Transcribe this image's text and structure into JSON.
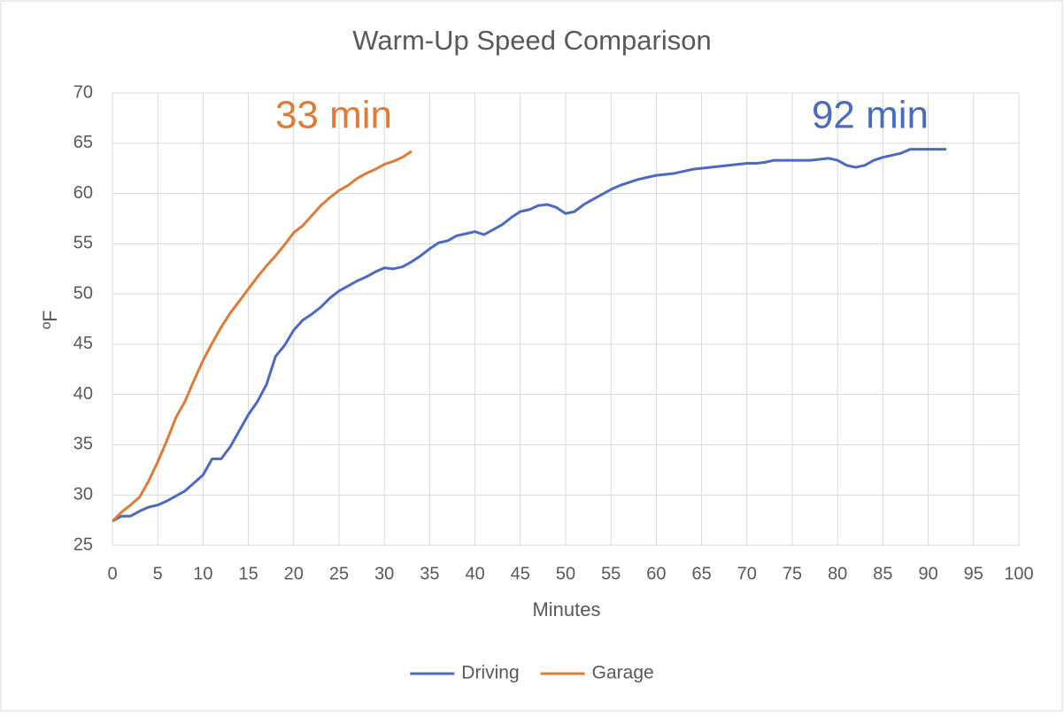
{
  "chart_data": {
    "type": "line",
    "title": "Warm-Up Speed Comparison",
    "x_label": "Minutes",
    "y_label": "ºF",
    "xlim": [
      0,
      100
    ],
    "xticks": [
      0,
      5,
      10,
      15,
      20,
      25,
      30,
      35,
      40,
      45,
      50,
      55,
      60,
      65,
      70,
      75,
      80,
      85,
      90,
      95,
      100
    ],
    "ylim": [
      25,
      70
    ],
    "yticks": [
      25,
      30,
      35,
      40,
      45,
      50,
      55,
      60,
      65,
      70
    ],
    "grid": true,
    "legend": "bottom",
    "annotations": [
      {
        "text": "33 min",
        "color": "#e07b35"
      },
      {
        "text": "92 min",
        "color": "#4a6bbf"
      }
    ],
    "series": [
      {
        "name": "Driving",
        "color": "#4a6bbf",
        "x": [
          0,
          1,
          2,
          3,
          4,
          5,
          6,
          7,
          8,
          9,
          10,
          11,
          12,
          13,
          14,
          15,
          16,
          17,
          18,
          19,
          20,
          21,
          22,
          23,
          24,
          25,
          26,
          27,
          28,
          29,
          30,
          31,
          32,
          33,
          34,
          35,
          36,
          37,
          38,
          39,
          40,
          41,
          42,
          43,
          44,
          45,
          46,
          47,
          48,
          49,
          50,
          51,
          52,
          53,
          54,
          55,
          56,
          57,
          58,
          59,
          60,
          61,
          62,
          63,
          64,
          65,
          66,
          67,
          68,
          69,
          70,
          71,
          72,
          73,
          74,
          75,
          76,
          77,
          78,
          79,
          80,
          81,
          82,
          83,
          84,
          85,
          86,
          87,
          88,
          89,
          90,
          91,
          92
        ],
        "values": [
          27.4,
          27.9,
          27.9,
          28.4,
          28.8,
          29.0,
          29.4,
          29.9,
          30.4,
          31.2,
          32.0,
          33.6,
          33.6,
          34.8,
          36.4,
          38.0,
          39.3,
          41.0,
          43.8,
          44.9,
          46.4,
          47.4,
          48.0,
          48.7,
          49.6,
          50.3,
          50.8,
          51.3,
          51.7,
          52.2,
          52.6,
          52.5,
          52.7,
          53.2,
          53.8,
          54.5,
          55.1,
          55.3,
          55.8,
          56.0,
          56.2,
          55.9,
          56.4,
          56.9,
          57.6,
          58.2,
          58.4,
          58.8,
          58.9,
          58.6,
          58.0,
          58.2,
          58.9,
          59.4,
          59.9,
          60.4,
          60.8,
          61.1,
          61.4,
          61.6,
          61.8,
          61.9,
          62.0,
          62.2,
          62.4,
          62.5,
          62.6,
          62.7,
          62.8,
          62.9,
          63.0,
          63.0,
          63.1,
          63.3,
          63.3,
          63.3,
          63.3,
          63.3,
          63.4,
          63.5,
          63.3,
          62.8,
          62.6,
          62.8,
          63.3,
          63.6,
          63.8,
          64.0,
          64.4,
          64.4,
          64.4,
          64.4,
          64.4
        ]
      },
      {
        "name": "Garage",
        "color": "#e07b35",
        "x": [
          0,
          1,
          2,
          3,
          4,
          5,
          6,
          7,
          8,
          9,
          10,
          11,
          12,
          13,
          14,
          15,
          16,
          17,
          18,
          19,
          20,
          21,
          22,
          23,
          24,
          25,
          26,
          27,
          28,
          29,
          30,
          31,
          32,
          33
        ],
        "values": [
          27.4,
          28.3,
          29.0,
          29.8,
          31.4,
          33.3,
          35.4,
          37.7,
          39.3,
          41.4,
          43.4,
          45.1,
          46.7,
          48.1,
          49.3,
          50.5,
          51.7,
          52.8,
          53.8,
          54.9,
          56.1,
          56.8,
          57.8,
          58.8,
          59.6,
          60.3,
          60.8,
          61.5,
          62.0,
          62.4,
          62.9,
          63.2,
          63.6,
          64.2
        ]
      }
    ]
  }
}
